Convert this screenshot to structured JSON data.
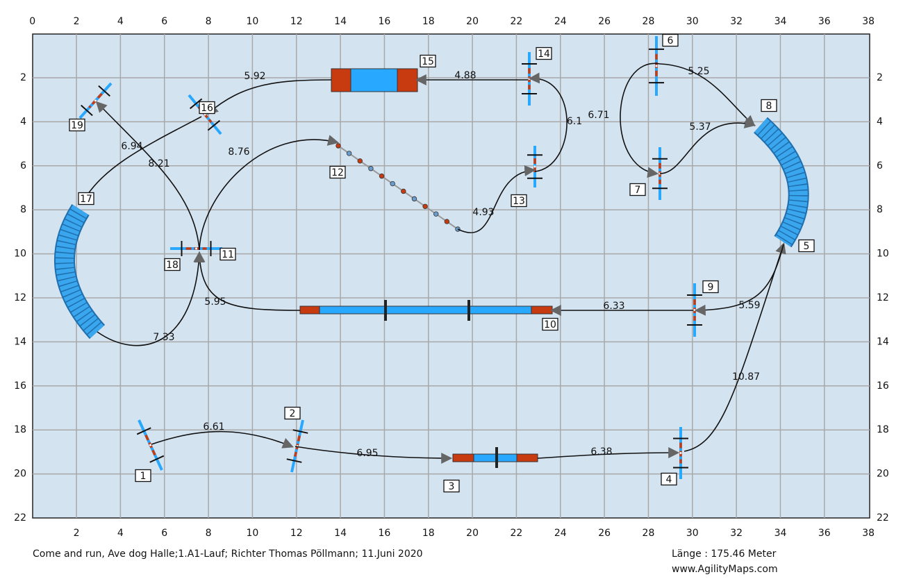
{
  "axes": {
    "top": [
      0,
      2,
      4,
      6,
      8,
      10,
      12,
      14,
      16,
      18,
      20,
      22,
      24,
      26,
      28,
      30,
      32,
      34,
      36,
      38
    ],
    "bottom": [
      2,
      4,
      6,
      8,
      10,
      12,
      14,
      16,
      18,
      20,
      22,
      24,
      26,
      28,
      30,
      32,
      34,
      36,
      38
    ],
    "left": [
      2,
      4,
      6,
      8,
      10,
      12,
      14,
      16,
      18,
      20,
      22
    ],
    "right": [
      2,
      4,
      6,
      8,
      10,
      12,
      14,
      16,
      18,
      20,
      22
    ]
  },
  "obstacles": [
    "1",
    "2",
    "3",
    "4",
    "5",
    "6",
    "7",
    "8",
    "9",
    "10",
    "11",
    "12",
    "13",
    "14",
    "15",
    "16",
    "17",
    "18",
    "19"
  ],
  "distances": [
    6.61,
    6.95,
    6.38,
    10.87,
    5.59,
    6.33,
    5.95,
    7.33,
    8.76,
    4.93,
    6.1,
    6.71,
    5.25,
    5.37,
    4.88,
    5.92,
    6.94,
    8.21
  ],
  "footer": {
    "course": "Come and run, Ave dog Halle;1.A1-Lauf; Richter Thomas Pöllmann; 11.Juni 2020",
    "length": "Länge : 175.46 Meter",
    "site": "www.AgilityMaps.com"
  }
}
